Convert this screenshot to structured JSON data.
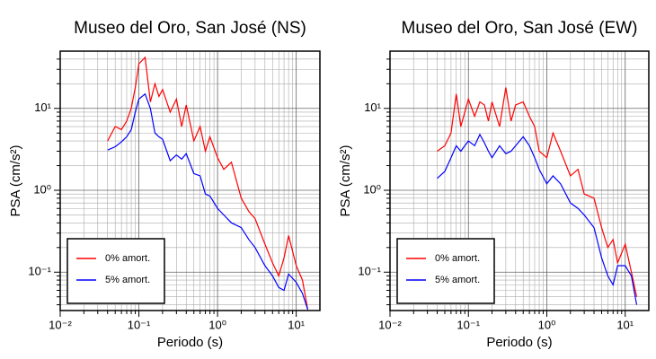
{
  "chart_data": [
    {
      "type": "line",
      "title": "Museo del Oro, San José (NS)",
      "x_label": "Periodo (s)",
      "y_label": "PSA (cm/s²)",
      "xscale": "log",
      "yscale": "log",
      "grid": true,
      "legend": "lower left",
      "xlim": [
        0.01,
        20
      ],
      "ylim": [
        0.034,
        50
      ],
      "xticks": [
        {
          "value": 0.01,
          "label": "10⁻²"
        },
        {
          "value": 0.1,
          "label": "10⁻¹"
        },
        {
          "value": 1,
          "label": "10⁰"
        },
        {
          "value": 10,
          "label": "10¹"
        }
      ],
      "yticks": [
        {
          "value": 0.1,
          "label": "10⁻¹"
        },
        {
          "value": 1,
          "label": "10⁰"
        },
        {
          "value": 10,
          "label": "10¹"
        }
      ],
      "x": [
        0.04,
        0.05,
        0.06,
        0.07,
        0.08,
        0.09,
        0.1,
        0.12,
        0.14,
        0.16,
        0.18,
        0.2,
        0.25,
        0.3,
        0.35,
        0.4,
        0.5,
        0.6,
        0.7,
        0.8,
        1.0,
        1.2,
        1.5,
        2,
        2.5,
        3,
        4,
        5,
        6,
        7,
        8,
        10,
        12,
        14
      ],
      "series": [
        {
          "name": "0% amort.",
          "color": "#ff0000",
          "values": [
            4,
            6,
            5.5,
            7,
            10,
            18,
            35,
            42,
            12,
            20,
            14,
            17,
            9,
            13,
            6,
            11,
            4,
            6,
            3,
            4.5,
            2.5,
            1.8,
            2.2,
            0.8,
            0.55,
            0.45,
            0.22,
            0.13,
            0.09,
            0.15,
            0.28,
            0.12,
            0.08,
            0.035
          ]
        },
        {
          "name": "5% amort.",
          "color": "#0000ff",
          "values": [
            3.1,
            3.4,
            3.9,
            4.5,
            5.5,
            9,
            13,
            15,
            10,
            5,
            4.5,
            4.2,
            2.3,
            2.7,
            2.4,
            2.8,
            1.6,
            1.5,
            0.9,
            0.85,
            0.6,
            0.5,
            0.4,
            0.35,
            0.25,
            0.2,
            0.12,
            0.09,
            0.065,
            0.06,
            0.095,
            0.075,
            0.055,
            0.035
          ]
        }
      ]
    },
    {
      "type": "line",
      "title": "Museo del Oro, San José (EW)",
      "x_label": "Periodo (s)",
      "y_label": "PSA (cm/s²)",
      "xscale": "log",
      "yscale": "log",
      "grid": true,
      "legend": "lower left",
      "xlim": [
        0.01,
        20
      ],
      "ylim": [
        0.034,
        50
      ],
      "xticks": [
        {
          "value": 0.01,
          "label": "10⁻²"
        },
        {
          "value": 0.1,
          "label": "10⁻¹"
        },
        {
          "value": 1,
          "label": "10⁰"
        },
        {
          "value": 10,
          "label": "10¹"
        }
      ],
      "yticks": [
        {
          "value": 0.1,
          "label": "10⁻¹"
        },
        {
          "value": 1,
          "label": "10⁰"
        },
        {
          "value": 10,
          "label": "10¹"
        }
      ],
      "x": [
        0.04,
        0.05,
        0.06,
        0.07,
        0.08,
        0.09,
        0.1,
        0.12,
        0.14,
        0.16,
        0.18,
        0.2,
        0.25,
        0.3,
        0.35,
        0.4,
        0.5,
        0.6,
        0.7,
        0.8,
        1.0,
        1.2,
        1.5,
        2,
        2.5,
        3,
        4,
        5,
        6,
        7,
        8,
        10,
        12,
        14
      ],
      "series": [
        {
          "name": "0% amort.",
          "color": "#ff0000",
          "values": [
            3,
            3.5,
            5,
            15,
            6,
            9,
            13,
            8,
            12,
            11,
            7,
            12,
            6,
            18,
            7,
            11,
            12,
            8,
            6,
            3,
            2.5,
            5,
            3,
            1.5,
            1.8,
            0.9,
            0.8,
            0.35,
            0.2,
            0.25,
            0.13,
            0.22,
            0.1,
            0.05
          ]
        },
        {
          "name": "5% amort.",
          "color": "#0000ff",
          "values": [
            1.4,
            1.7,
            2.5,
            3.5,
            3,
            3.5,
            4,
            3.5,
            4.8,
            3.8,
            3,
            2.5,
            3.5,
            2.8,
            3,
            3.5,
            4.5,
            3.5,
            2.5,
            1.8,
            1.2,
            1.5,
            1.2,
            0.7,
            0.6,
            0.5,
            0.35,
            0.15,
            0.09,
            0.07,
            0.12,
            0.12,
            0.09,
            0.04
          ]
        }
      ]
    }
  ]
}
